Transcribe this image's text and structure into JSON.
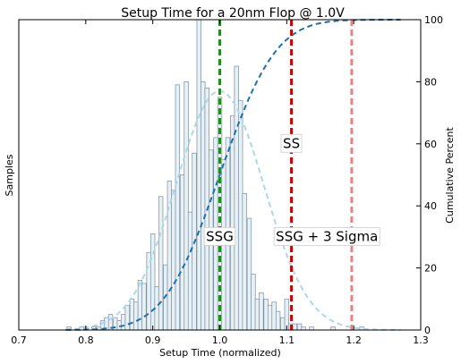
{
  "chart_data": {
    "type": "bar",
    "title": "Setup Time for a 20nm Flop @ 1.0V",
    "xlabel": "Setup Time (normalized)",
    "ylabel": "Samples",
    "y2label": "Cumulative Percent",
    "xlim": [
      0.7,
      1.3
    ],
    "ylim": [
      0,
      100
    ],
    "y2lim": [
      0,
      100
    ],
    "grid": false,
    "xticks": [
      "0.7",
      "0.8",
      "0.9",
      "1.0",
      "1.1",
      "1.2",
      "1.3"
    ],
    "y2ticks": [
      "0",
      "20",
      "40",
      "60",
      "80",
      "100"
    ],
    "bin_width": 0.00625,
    "histogram": {
      "name": "Samples",
      "bin_centers": [
        0.775,
        0.781,
        0.787,
        0.794,
        0.8,
        0.806,
        0.812,
        0.819,
        0.825,
        0.831,
        0.837,
        0.844,
        0.85,
        0.856,
        0.862,
        0.869,
        0.875,
        0.881,
        0.887,
        0.894,
        0.9,
        0.906,
        0.912,
        0.919,
        0.925,
        0.931,
        0.937,
        0.944,
        0.95,
        0.956,
        0.962,
        0.969,
        0.975,
        0.981,
        0.987,
        0.994,
        1.0,
        1.006,
        1.012,
        1.019,
        1.025,
        1.031,
        1.037,
        1.044,
        1.05,
        1.056,
        1.062,
        1.069,
        1.075,
        1.081,
        1.087,
        1.094,
        1.1,
        1.106,
        1.112,
        1.119,
        1.125,
        1.131,
        1.137,
        1.144,
        1.15,
        1.156,
        1.162,
        1.169,
        1.175,
        1.181,
        1.187,
        1.194,
        1.2,
        1.206,
        1.212,
        1.219
      ],
      "values": [
        1,
        0,
        0,
        1,
        1,
        0,
        1,
        1,
        3,
        4,
        5,
        4,
        3,
        5,
        8,
        10,
        9,
        16,
        15,
        25,
        31,
        14,
        43,
        21,
        48,
        45,
        79,
        50,
        80,
        38,
        57,
        100,
        80,
        78,
        58,
        62,
        75,
        55,
        62,
        69,
        85,
        74,
        44,
        36,
        18,
        10,
        12,
        10,
        8,
        9,
        6,
        4,
        10,
        2,
        2,
        2,
        1,
        0,
        1,
        0,
        0,
        0,
        0,
        1,
        0,
        0,
        0,
        0,
        0,
        0,
        1,
        0
      ]
    },
    "series": [
      {
        "style": "dashed",
        "color": "#add8e6",
        "mu": 1.0,
        "sigma": 0.0657,
        "peak": 77
      },
      {
        "style": "dashed",
        "color": "#1f6fad",
        "mu": 1.0,
        "sigma": 0.0657,
        "kind": "cdf",
        "y_axis": "right"
      }
    ],
    "vlines": [
      {
        "x": 1.0,
        "color": "#228b22"
      },
      {
        "x": 1.107,
        "color": "#cc0000"
      },
      {
        "x": 1.197,
        "color": "#f08080"
      }
    ],
    "annotations": [
      {
        "text": "SSG",
        "x": 1.0,
        "y": 30
      },
      {
        "text": "SS",
        "x": 1.107,
        "y": 60
      },
      {
        "text": "SSG + 3 Sigma",
        "x": 1.16,
        "y": 30
      }
    ],
    "colors": {
      "bar_fill": "#e6f0f5",
      "bar_edge": "#7a8ea0",
      "axis": "#000000"
    }
  }
}
